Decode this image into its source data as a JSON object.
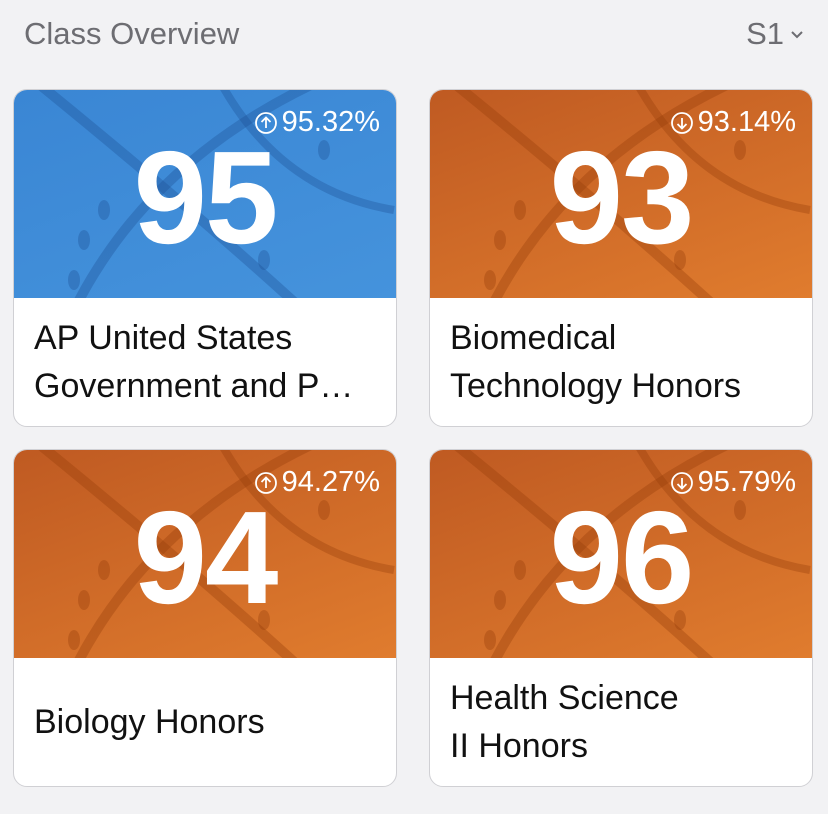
{
  "header": {
    "title": "Class Overview",
    "term": "S1"
  },
  "cards": [
    {
      "grade": 95,
      "percent": "95.32%",
      "trend": "up",
      "theme": "blue",
      "name_lines": [
        "AP United States",
        "Government and P…"
      ]
    },
    {
      "grade": 93,
      "percent": "93.14%",
      "trend": "down",
      "theme": "orange",
      "name_lines": [
        "Biomedical",
        "Technology Honors"
      ]
    },
    {
      "grade": 94,
      "percent": "94.27%",
      "trend": "up",
      "theme": "orange",
      "name_lines": [
        "Biology Honors"
      ]
    },
    {
      "grade": 96,
      "percent": "95.79%",
      "trend": "down",
      "theme": "orange",
      "name_lines": [
        "Health Science",
        "II Honors"
      ]
    }
  ]
}
